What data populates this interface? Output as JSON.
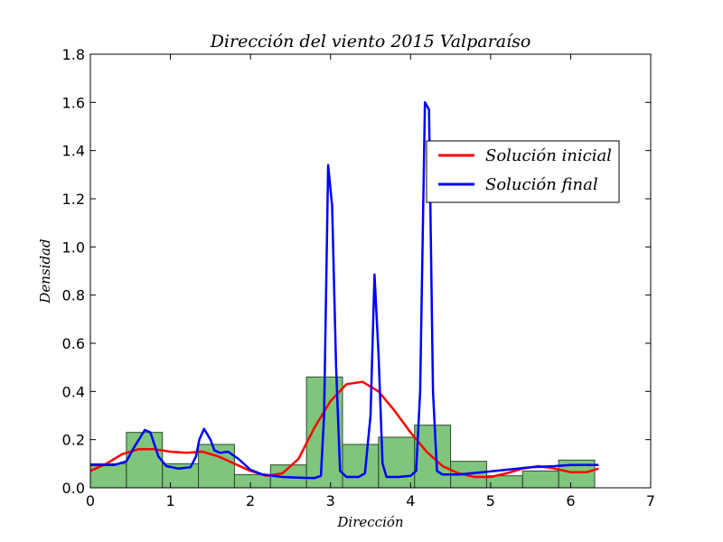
{
  "chart_data": {
    "type": "bar",
    "title": "Dirección del viento 2015 Valparaíso",
    "xlabel": "Dirección",
    "ylabel": "Densidad",
    "xlim": [
      0,
      7
    ],
    "ylim": [
      0,
      1.8
    ],
    "xticks": [
      "0",
      "1",
      "2",
      "3",
      "4",
      "5",
      "6",
      "7"
    ],
    "yticks": [
      "0.0",
      "0.2",
      "0.4",
      "0.6",
      "0.8",
      "1.0",
      "1.2",
      "1.4",
      "1.6",
      "1.8"
    ],
    "grid": false,
    "legend_position": "upper-right",
    "histogram": {
      "color": "#4daf4a",
      "bins": [
        {
          "x0": 0.0,
          "x1": 0.45,
          "value": 0.1
        },
        {
          "x0": 0.45,
          "x1": 0.9,
          "value": 0.23
        },
        {
          "x0": 0.9,
          "x1": 1.35,
          "value": 0.1
        },
        {
          "x0": 1.35,
          "x1": 1.8,
          "value": 0.18
        },
        {
          "x0": 1.8,
          "x1": 2.25,
          "value": 0.055
        },
        {
          "x0": 2.25,
          "x1": 2.7,
          "value": 0.095
        },
        {
          "x0": 2.7,
          "x1": 3.15,
          "value": 0.46
        },
        {
          "x0": 3.15,
          "x1": 3.6,
          "value": 0.18
        },
        {
          "x0": 3.6,
          "x1": 4.05,
          "value": 0.21
        },
        {
          "x0": 4.05,
          "x1": 4.5,
          "value": 0.26
        },
        {
          "x0": 4.5,
          "x1": 4.95,
          "value": 0.11
        },
        {
          "x0": 4.95,
          "x1": 5.4,
          "value": 0.05
        },
        {
          "x0": 5.4,
          "x1": 5.85,
          "value": 0.07
        },
        {
          "x0": 5.85,
          "x1": 6.3,
          "value": 0.115
        }
      ]
    },
    "series": [
      {
        "name": "Solución inicial",
        "color": "#ff0000",
        "points": [
          [
            0.0,
            0.07
          ],
          [
            0.2,
            0.1
          ],
          [
            0.4,
            0.14
          ],
          [
            0.6,
            0.16
          ],
          [
            0.8,
            0.16
          ],
          [
            1.0,
            0.15
          ],
          [
            1.2,
            0.145
          ],
          [
            1.4,
            0.15
          ],
          [
            1.6,
            0.13
          ],
          [
            1.8,
            0.1
          ],
          [
            2.0,
            0.07
          ],
          [
            2.2,
            0.05
          ],
          [
            2.4,
            0.06
          ],
          [
            2.6,
            0.12
          ],
          [
            2.8,
            0.25
          ],
          [
            3.0,
            0.36
          ],
          [
            3.2,
            0.43
          ],
          [
            3.4,
            0.44
          ],
          [
            3.6,
            0.4
          ],
          [
            3.8,
            0.32
          ],
          [
            4.0,
            0.23
          ],
          [
            4.2,
            0.15
          ],
          [
            4.4,
            0.09
          ],
          [
            4.6,
            0.06
          ],
          [
            4.8,
            0.045
          ],
          [
            5.0,
            0.045
          ],
          [
            5.2,
            0.06
          ],
          [
            5.4,
            0.08
          ],
          [
            5.6,
            0.09
          ],
          [
            5.8,
            0.08
          ],
          [
            6.0,
            0.065
          ],
          [
            6.2,
            0.065
          ],
          [
            6.35,
            0.08
          ]
        ]
      },
      {
        "name": "Solución final",
        "color": "#0000ff",
        "points": [
          [
            0.0,
            0.095
          ],
          [
            0.3,
            0.095
          ],
          [
            0.45,
            0.11
          ],
          [
            0.55,
            0.17
          ],
          [
            0.68,
            0.24
          ],
          [
            0.75,
            0.23
          ],
          [
            0.85,
            0.13
          ],
          [
            0.95,
            0.09
          ],
          [
            1.1,
            0.08
          ],
          [
            1.25,
            0.085
          ],
          [
            1.32,
            0.13
          ],
          [
            1.36,
            0.2
          ],
          [
            1.42,
            0.245
          ],
          [
            1.5,
            0.2
          ],
          [
            1.55,
            0.155
          ],
          [
            1.62,
            0.145
          ],
          [
            1.72,
            0.15
          ],
          [
            1.85,
            0.12
          ],
          [
            2.0,
            0.075
          ],
          [
            2.15,
            0.055
          ],
          [
            2.4,
            0.045
          ],
          [
            2.6,
            0.042
          ],
          [
            2.8,
            0.04
          ],
          [
            2.88,
            0.05
          ],
          [
            2.92,
            0.3
          ],
          [
            2.97,
            1.34
          ],
          [
            3.02,
            1.17
          ],
          [
            3.07,
            0.5
          ],
          [
            3.12,
            0.07
          ],
          [
            3.2,
            0.045
          ],
          [
            3.35,
            0.045
          ],
          [
            3.43,
            0.06
          ],
          [
            3.5,
            0.3
          ],
          [
            3.55,
            0.885
          ],
          [
            3.6,
            0.55
          ],
          [
            3.65,
            0.1
          ],
          [
            3.7,
            0.045
          ],
          [
            3.85,
            0.045
          ],
          [
            4.0,
            0.05
          ],
          [
            4.07,
            0.07
          ],
          [
            4.12,
            0.4
          ],
          [
            4.18,
            1.6
          ],
          [
            4.23,
            1.57
          ],
          [
            4.28,
            0.4
          ],
          [
            4.33,
            0.07
          ],
          [
            4.4,
            0.055
          ],
          [
            4.6,
            0.055
          ],
          [
            4.9,
            0.065
          ],
          [
            5.2,
            0.075
          ],
          [
            5.5,
            0.085
          ],
          [
            5.8,
            0.09
          ],
          [
            6.0,
            0.095
          ],
          [
            6.35,
            0.095
          ]
        ]
      }
    ]
  }
}
